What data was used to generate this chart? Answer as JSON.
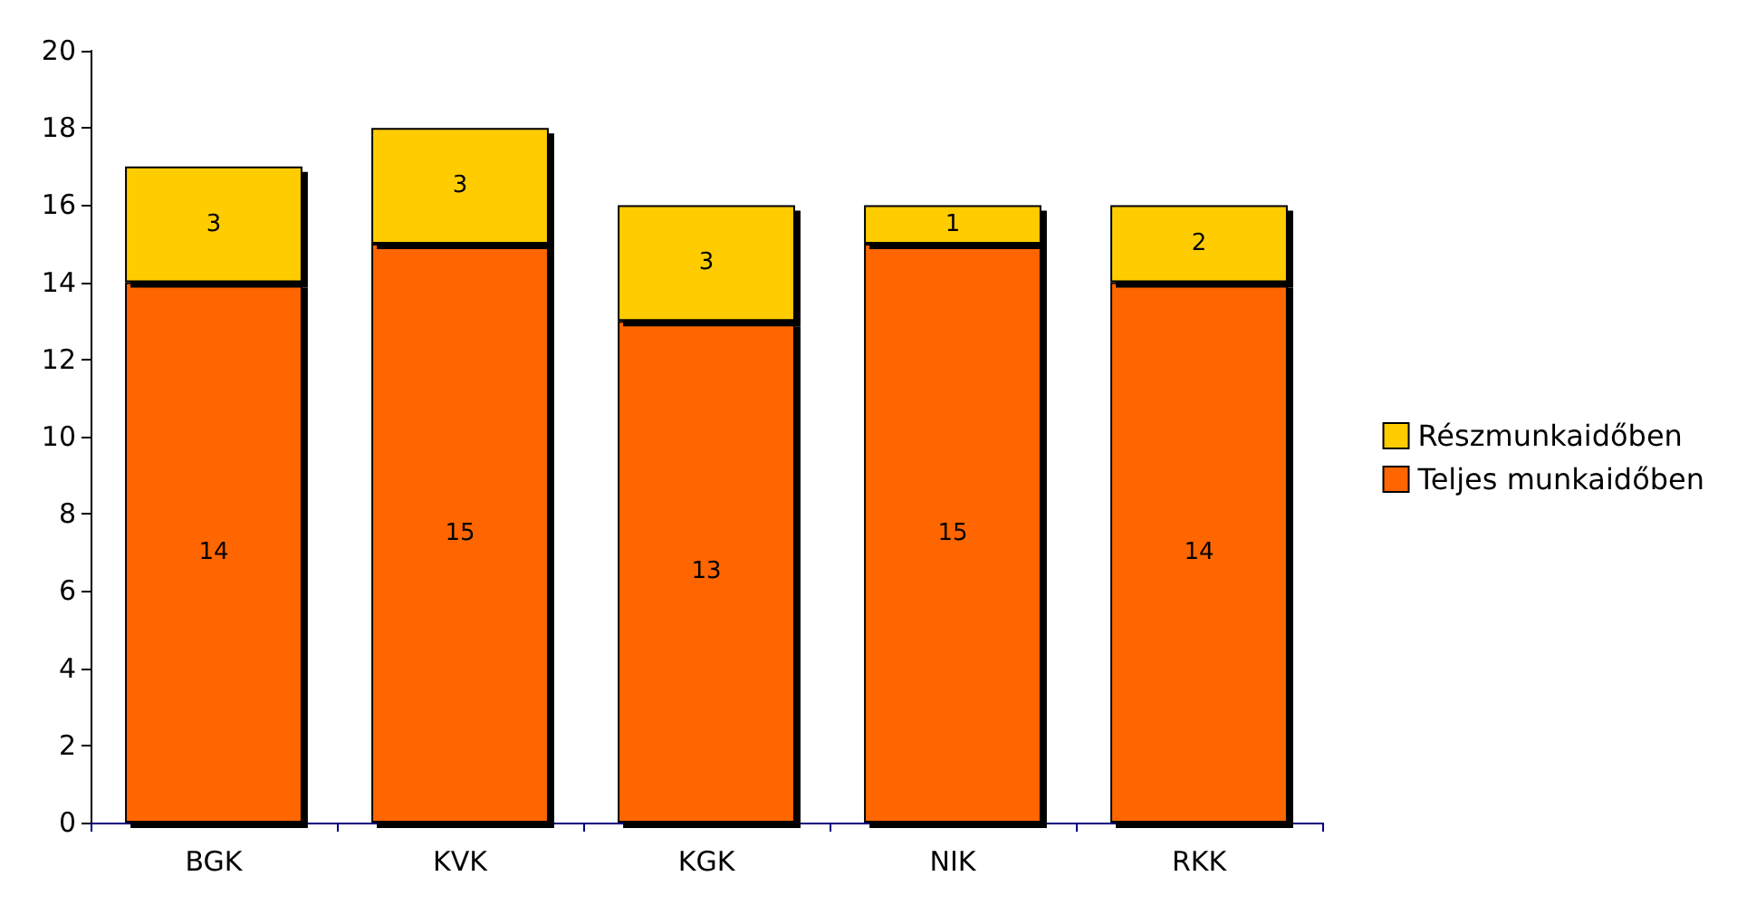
{
  "chart_data": {
    "type": "bar",
    "stacked": true,
    "categories": [
      "BGK",
      "KVK",
      "KGK",
      "NIK",
      "RKK"
    ],
    "series": [
      {
        "name": "Teljes munkaidőben",
        "color": "#ff6600",
        "values": [
          14,
          15,
          13,
          15,
          14
        ]
      },
      {
        "name": "Részmunkaidőben",
        "color": "#ffcc00",
        "values": [
          3,
          3,
          3,
          1,
          2
        ]
      }
    ],
    "ylim": [
      0,
      20
    ],
    "yticks": [
      0,
      2,
      4,
      6,
      8,
      10,
      12,
      14,
      16,
      18,
      20
    ],
    "grid": false,
    "legend": "right",
    "data_labels": true
  }
}
